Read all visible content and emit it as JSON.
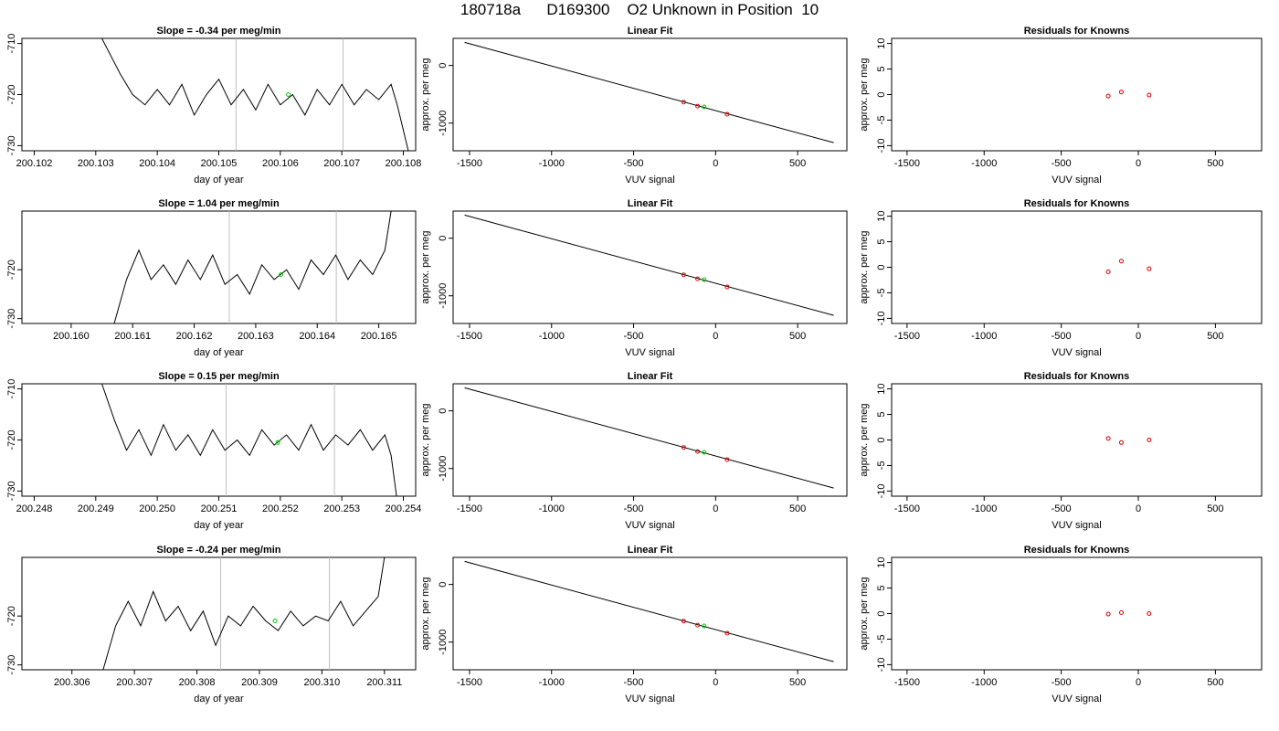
{
  "title": {
    "run": "180718a",
    "tank": "D169300",
    "desc": "O2 Unknown in Position  10"
  },
  "colors": {
    "trace": "#000000",
    "vline": "#bebebe",
    "unknown_point": "#00cc00",
    "known_point": "#dd0000",
    "axis": "#000000"
  },
  "chart_data": [
    {
      "type": "line",
      "row": 1,
      "col": 1,
      "title": "Slope =  -0.34  per meg/min",
      "xlabel": "day of year",
      "ylabel": "approx. per meg",
      "xlim": [
        200.1018,
        200.1082
      ],
      "ylim": [
        -731,
        -709
      ],
      "xticks": [
        "200.102",
        "200.103",
        "200.104",
        "200.105",
        "200.106",
        "200.107",
        "200.108"
      ],
      "yticks": [
        "-710",
        "-720",
        "-730"
      ],
      "series": [
        {
          "x": [
            200.1031,
            200.1034,
            200.1036,
            200.1038,
            200.104,
            200.1042,
            200.1044,
            200.1046,
            200.1048,
            200.105,
            200.1052,
            200.1054,
            200.1056,
            200.1058,
            200.106,
            200.1062,
            200.1064,
            200.1066,
            200.1068,
            200.107,
            200.1072,
            200.1074,
            200.1076,
            200.1078,
            200.1079,
            200.1081
          ],
          "y": [
            -709,
            -716,
            -720,
            -722,
            -719,
            -722,
            -718,
            -724,
            -720,
            -717,
            -722,
            -719,
            -723,
            -718,
            -722,
            -720,
            -724,
            -719,
            -722,
            -718,
            -722,
            -719,
            -721,
            -718,
            -722,
            -732
          ]
        }
      ],
      "vlines": [
        200.10528,
        200.10702
      ],
      "unknown": {
        "x": 200.10613,
        "y": -720
      }
    },
    {
      "type": "scatter",
      "row": 1,
      "col": 2,
      "title": "Linear Fit",
      "xlabel": "VUV signal",
      "ylabel": "approx. per meg",
      "xlim": [
        -1600,
        800
      ],
      "ylim": [
        -1480,
        470
      ],
      "xticks": [
        "-1500",
        "-1000",
        "-500",
        "0",
        "500"
      ],
      "yticks": [
        "0",
        "-1000"
      ],
      "fit_line": {
        "x": [
          -1530,
          720
        ],
        "y": [
          400,
          -1340
        ]
      },
      "knowns": [
        {
          "x": -195,
          "y": -635
        },
        {
          "x": -110,
          "y": -705
        },
        {
          "x": 70,
          "y": -845
        }
      ],
      "unknown": {
        "x": -70,
        "y": -720
      }
    },
    {
      "type": "scatter",
      "row": 1,
      "col": 3,
      "title": "Residuals for Knowns",
      "xlabel": "VUV signal",
      "ylabel": "approx. per meg",
      "xlim": [
        -1600,
        800
      ],
      "ylim": [
        -11,
        11
      ],
      "xticks": [
        "-1500",
        "-1000",
        "-500",
        "0",
        "500"
      ],
      "yticks": [
        "10",
        "5",
        "0",
        "-5",
        "-10"
      ],
      "knowns": [
        {
          "x": -195,
          "y": -0.3
        },
        {
          "x": -110,
          "y": 0.5
        },
        {
          "x": 70,
          "y": -0.1
        }
      ]
    },
    {
      "type": "line",
      "row": 2,
      "col": 1,
      "title": "Slope =  1.04  per meg/min",
      "xlabel": "day of year",
      "ylabel": "approx. per meg",
      "xlim": [
        200.1592,
        200.1656
      ],
      "ylim": [
        -731,
        -708
      ],
      "xticks": [
        "200.160",
        "200.161",
        "200.162",
        "200.163",
        "200.164",
        "200.165"
      ],
      "yticks": [
        "-720",
        "-730"
      ],
      "series": [
        {
          "x": [
            200.1607,
            200.1609,
            200.1611,
            200.1613,
            200.1615,
            200.1617,
            200.1619,
            200.1621,
            200.1623,
            200.1625,
            200.1627,
            200.1629,
            200.1631,
            200.1633,
            200.1635,
            200.1637,
            200.1639,
            200.1641,
            200.1643,
            200.1645,
            200.1647,
            200.1649,
            200.1651,
            200.1652
          ],
          "y": [
            -731,
            -722,
            -716,
            -722,
            -719,
            -723,
            -718,
            -722,
            -717,
            -723,
            -721,
            -725,
            -719,
            -722,
            -720,
            -724,
            -718,
            -721,
            -717,
            -722,
            -718,
            -721,
            -716,
            -708
          ]
        }
      ],
      "vlines": [
        200.16257,
        200.16431
      ],
      "unknown": {
        "x": 200.16341,
        "y": -721
      }
    },
    {
      "type": "scatter",
      "row": 2,
      "col": 2,
      "title": "Linear Fit",
      "xlabel": "VUV signal",
      "ylabel": "approx. per meg",
      "xlim": [
        -1600,
        800
      ],
      "ylim": [
        -1480,
        470
      ],
      "xticks": [
        "-1500",
        "-1000",
        "-500",
        "0",
        "500"
      ],
      "yticks": [
        "0",
        "-1000"
      ],
      "fit_line": {
        "x": [
          -1530,
          720
        ],
        "y": [
          400,
          -1340
        ]
      },
      "knowns": [
        {
          "x": -195,
          "y": -635
        },
        {
          "x": -110,
          "y": -705
        },
        {
          "x": 70,
          "y": -845
        }
      ],
      "unknown": {
        "x": -70,
        "y": -720
      }
    },
    {
      "type": "scatter",
      "row": 2,
      "col": 3,
      "title": "Residuals for Knowns",
      "xlabel": "VUV signal",
      "ylabel": "approx. per meg",
      "xlim": [
        -1600,
        800
      ],
      "ylim": [
        -11,
        11
      ],
      "xticks": [
        "-1500",
        "-1000",
        "-500",
        "0",
        "500"
      ],
      "yticks": [
        "10",
        "5",
        "0",
        "-5",
        "-10"
      ],
      "knowns": [
        {
          "x": -195,
          "y": -0.9
        },
        {
          "x": -110,
          "y": 1.2
        },
        {
          "x": 70,
          "y": -0.3
        }
      ]
    },
    {
      "type": "line",
      "row": 3,
      "col": 1,
      "title": "Slope =  0.15  per meg/min",
      "xlabel": "day of year",
      "ylabel": "approx. per meg",
      "xlim": [
        200.2478,
        200.2542
      ],
      "ylim": [
        -731,
        -709
      ],
      "xticks": [
        "200.248",
        "200.249",
        "200.250",
        "200.251",
        "200.252",
        "200.253",
        "200.254"
      ],
      "yticks": [
        "-710",
        "-720",
        "-730"
      ],
      "series": [
        {
          "x": [
            200.2491,
            200.2493,
            200.2495,
            200.2497,
            200.2499,
            200.2501,
            200.2503,
            200.2505,
            200.2507,
            200.2509,
            200.2511,
            200.2513,
            200.2515,
            200.2517,
            200.2519,
            200.2521,
            200.2523,
            200.2525,
            200.2527,
            200.2529,
            200.2531,
            200.2533,
            200.2535,
            200.2537,
            200.2538,
            200.2539
          ],
          "y": [
            -709,
            -716,
            -722,
            -718,
            -723,
            -717,
            -722,
            -719,
            -723,
            -718,
            -722,
            -720,
            -723,
            -718,
            -721,
            -719,
            -722,
            -717,
            -722,
            -719,
            -721,
            -718,
            -722,
            -719,
            -723,
            -732
          ]
        }
      ],
      "vlines": [
        200.25112,
        200.25288
      ],
      "unknown": {
        "x": 200.25196,
        "y": -720.5
      }
    },
    {
      "type": "scatter",
      "row": 3,
      "col": 2,
      "title": "Linear Fit",
      "xlabel": "VUV signal",
      "ylabel": "approx. per meg",
      "xlim": [
        -1600,
        800
      ],
      "ylim": [
        -1480,
        470
      ],
      "xticks": [
        "-1500",
        "-1000",
        "-500",
        "0",
        "500"
      ],
      "yticks": [
        "0",
        "-1000"
      ],
      "fit_line": {
        "x": [
          -1530,
          720
        ],
        "y": [
          400,
          -1340
        ]
      },
      "knowns": [
        {
          "x": -195,
          "y": -635
        },
        {
          "x": -110,
          "y": -705
        },
        {
          "x": 70,
          "y": -845
        }
      ],
      "unknown": {
        "x": -70,
        "y": -720
      }
    },
    {
      "type": "scatter",
      "row": 3,
      "col": 3,
      "title": "Residuals for Knowns",
      "xlabel": "VUV signal",
      "ylabel": "approx. per meg",
      "xlim": [
        -1600,
        800
      ],
      "ylim": [
        -11,
        11
      ],
      "xticks": [
        "-1500",
        "-1000",
        "-500",
        "0",
        "500"
      ],
      "yticks": [
        "10",
        "5",
        "0",
        "-5",
        "-10"
      ],
      "knowns": [
        {
          "x": -195,
          "y": 0.3
        },
        {
          "x": -110,
          "y": -0.5
        },
        {
          "x": 70,
          "y": 0.0
        }
      ]
    },
    {
      "type": "line",
      "row": 4,
      "col": 1,
      "title": "Slope =  -0.24  per meg/min",
      "xlabel": "day of year",
      "ylabel": "approx. per meg",
      "xlim": [
        200.3052,
        200.3115
      ],
      "ylim": [
        -731,
        -708
      ],
      "xticks": [
        "200.306",
        "200.307",
        "200.308",
        "200.309",
        "200.310",
        "200.311"
      ],
      "yticks": [
        "-720",
        "-730"
      ],
      "series": [
        {
          "x": [
            200.3065,
            200.3067,
            200.3069,
            200.3071,
            200.3073,
            200.3075,
            200.3077,
            200.3079,
            200.3081,
            200.3083,
            200.3085,
            200.3087,
            200.3089,
            200.3091,
            200.3093,
            200.3095,
            200.3097,
            200.3099,
            200.3101,
            200.3103,
            200.3105,
            200.3107,
            200.3109,
            200.311
          ],
          "y": [
            -731,
            -722,
            -717,
            -722,
            -715,
            -721,
            -718,
            -723,
            -719,
            -726,
            -720,
            -722,
            -718,
            -721,
            -723,
            -719,
            -722,
            -720,
            -721,
            -717,
            -722,
            -719,
            -716,
            -708
          ]
        }
      ],
      "vlines": [
        200.30838,
        200.31012
      ],
      "unknown": {
        "x": 200.30925,
        "y": -721
      }
    },
    {
      "type": "scatter",
      "row": 4,
      "col": 2,
      "title": "Linear Fit",
      "xlabel": "VUV signal",
      "ylabel": "approx. per meg",
      "xlim": [
        -1600,
        800
      ],
      "ylim": [
        -1480,
        470
      ],
      "xticks": [
        "-1500",
        "-1000",
        "-500",
        "0",
        "500"
      ],
      "yticks": [
        "0",
        "-1000"
      ],
      "fit_line": {
        "x": [
          -1530,
          720
        ],
        "y": [
          400,
          -1340
        ]
      },
      "knowns": [
        {
          "x": -195,
          "y": -635
        },
        {
          "x": -110,
          "y": -705
        },
        {
          "x": 70,
          "y": -845
        }
      ],
      "unknown": {
        "x": -70,
        "y": -720
      }
    },
    {
      "type": "scatter",
      "row": 4,
      "col": 3,
      "title": "Residuals for Knowns",
      "xlabel": "VUV signal",
      "ylabel": "approx. per meg",
      "xlim": [
        -1600,
        800
      ],
      "ylim": [
        -11,
        11
      ],
      "xticks": [
        "-1500",
        "-1000",
        "-500",
        "0",
        "500"
      ],
      "yticks": [
        "10",
        "5",
        "0",
        "-5",
        "-10"
      ],
      "knowns": [
        {
          "x": -195,
          "y": -0.1
        },
        {
          "x": -110,
          "y": 0.2
        },
        {
          "x": 70,
          "y": 0.0
        }
      ]
    }
  ]
}
